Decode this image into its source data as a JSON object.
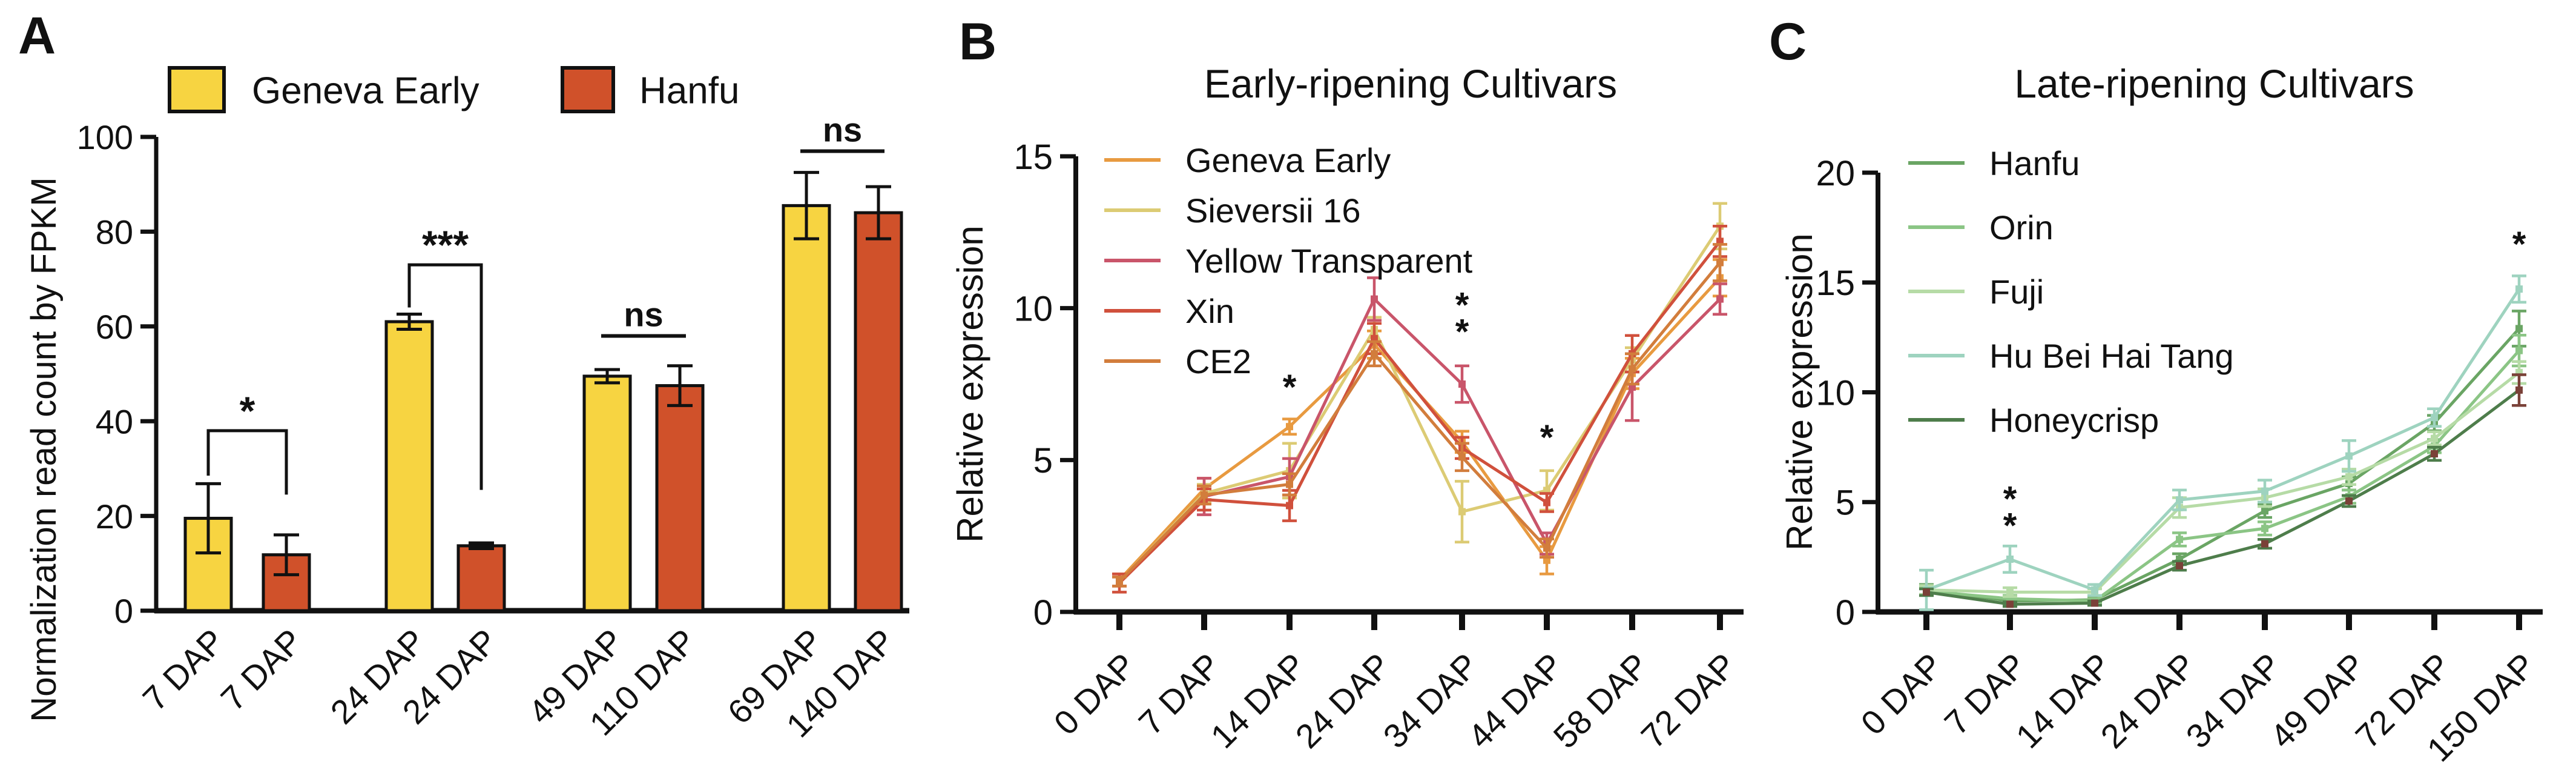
{
  "figure": {
    "background": "#ffffff"
  },
  "chart_data": [
    {
      "panel_label": "A",
      "type": "bar",
      "title": "",
      "ylabel": "Normalization read count by FPKM",
      "xlabel": "",
      "ylim": [
        0,
        100
      ],
      "yticks": [
        0,
        20,
        40,
        60,
        80,
        100
      ],
      "grid": false,
      "legend_position": "top",
      "legend": [
        {
          "label": "Geneva Early",
          "color": "#F7D441"
        },
        {
          "label": "Hanfu",
          "color": "#D0512A"
        }
      ],
      "categories": [
        "7 DAP",
        "7 DAP",
        "24 DAP",
        "24 DAP",
        "49 DAP",
        "110 DAP",
        "69 DAP",
        "140 DAP"
      ],
      "bars": [
        {
          "series": "Geneva Early",
          "category": "7 DAP",
          "value": 19.5,
          "error": 7.3
        },
        {
          "series": "Hanfu",
          "category": "7 DAP",
          "value": 11.8,
          "error": 4.2
        },
        {
          "series": "Geneva Early",
          "category": "24 DAP",
          "value": 61.0,
          "error": 1.6
        },
        {
          "series": "Hanfu",
          "category": "24 DAP",
          "value": 13.7,
          "error": 0.6
        },
        {
          "series": "Geneva Early",
          "category": "49 DAP",
          "value": 49.5,
          "error": 1.4
        },
        {
          "series": "Hanfu",
          "category": "110 DAP",
          "value": 47.5,
          "error": 4.2
        },
        {
          "series": "Geneva Early",
          "category": "69 DAP",
          "value": 85.5,
          "error": 7.0
        },
        {
          "series": "Hanfu",
          "category": "140 DAP",
          "value": 84.0,
          "error": 5.5
        }
      ],
      "significance": [
        {
          "style": "bracket",
          "from_bar": 0,
          "to_bar": 1,
          "y": 38,
          "drop_left": 9.5,
          "drop_right": 13.5,
          "label": "*"
        },
        {
          "style": "bracket",
          "from_bar": 2,
          "to_bar": 3,
          "y": 73,
          "drop_left": 9.0,
          "drop_right": 47.5,
          "label": "***"
        },
        {
          "style": "line",
          "from_bar": 4,
          "to_bar": 5,
          "y": 58,
          "label": "ns"
        },
        {
          "style": "line",
          "from_bar": 6,
          "to_bar": 7,
          "y": 97,
          "label": "ns"
        }
      ]
    },
    {
      "panel_label": "B",
      "type": "line",
      "title": "Early-ripening Cultivars",
      "ylabel": "Relative expression",
      "xlabel": "",
      "ylim": [
        0,
        15
      ],
      "yticks": [
        0,
        5,
        10,
        15
      ],
      "grid": false,
      "legend_position": "upper-left",
      "categories": [
        "0 DAP",
        "7 DAP",
        "14 DAP",
        "24 DAP",
        "34 DAP",
        "44 DAP",
        "58 DAP",
        "72 DAP"
      ],
      "series": [
        {
          "name": "Geneva Early",
          "color": "#E89A40",
          "values": [
            1.05,
            4.05,
            6.1,
            8.8,
            5.6,
            1.7,
            7.85,
            11.0
          ],
          "errors": [
            0.2,
            0.35,
            0.25,
            0.45,
            0.35,
            0.45,
            0.5,
            0.6
          ]
        },
        {
          "name": "Sieversii 16",
          "color": "#DCCB74",
          "values": [
            1.0,
            3.9,
            4.65,
            9.3,
            3.3,
            4.0,
            8.3,
            12.7
          ],
          "errors": [
            0.15,
            0.3,
            0.9,
            0.4,
            1.0,
            0.65,
            0.4,
            0.75
          ]
        },
        {
          "name": "Yellow Transparent",
          "color": "#C9556A",
          "values": [
            1.0,
            3.8,
            4.45,
            10.3,
            7.5,
            2.25,
            7.4,
            10.3
          ],
          "errors": [
            0.15,
            0.6,
            0.6,
            0.7,
            0.6,
            0.35,
            1.1,
            0.5
          ]
        },
        {
          "name": "Xin",
          "color": "#D0503C",
          "values": [
            0.95,
            3.7,
            3.5,
            9.0,
            5.4,
            3.6,
            8.5,
            12.2
          ],
          "errors": [
            0.3,
            0.35,
            0.5,
            0.5,
            0.35,
            0.3,
            0.6,
            0.5
          ]
        },
        {
          "name": "CE2",
          "color": "#D27D3C",
          "values": [
            1.0,
            3.85,
            4.2,
            8.5,
            5.1,
            2.1,
            8.0,
            11.5
          ],
          "errors": [
            0.15,
            0.3,
            0.35,
            0.4,
            0.45,
            0.3,
            0.5,
            0.6
          ]
        }
      ],
      "annotations": [
        {
          "x_index": 2,
          "y": 7.0,
          "label": "*",
          "stacked": false
        },
        {
          "x_index": 4,
          "y": 9.7,
          "label": "**",
          "stacked": true
        },
        {
          "x_index": 5,
          "y": 5.35,
          "label": "*",
          "stacked": false
        }
      ]
    },
    {
      "panel_label": "C",
      "type": "line",
      "title": "Late-ripening Cultivars",
      "ylabel": "Relative expression",
      "xlabel": "",
      "ylim": [
        0,
        20
      ],
      "yticks": [
        0,
        5,
        10,
        15,
        20
      ],
      "grid": false,
      "legend_position": "upper-left",
      "categories": [
        "0 DAP",
        "7 DAP",
        "14 DAP",
        "24 DAP",
        "34 DAP",
        "49 DAP",
        "72 DAP",
        "150 DAP"
      ],
      "series": [
        {
          "name": "Hanfu",
          "color": "#6AA564",
          "values": [
            1.0,
            0.5,
            0.55,
            2.4,
            4.6,
            5.85,
            8.6,
            12.9
          ],
          "errors": [
            0.25,
            0.15,
            0.1,
            0.25,
            0.3,
            0.3,
            0.35,
            0.8
          ]
        },
        {
          "name": "Orin",
          "color": "#8BC585",
          "values": [
            0.95,
            0.6,
            0.5,
            3.3,
            3.8,
            5.25,
            7.55,
            11.9
          ],
          "errors": [
            0.2,
            0.15,
            0.1,
            0.3,
            0.3,
            0.3,
            0.3,
            0.7
          ]
        },
        {
          "name": "Fuji",
          "color": "#B6DBA6",
          "values": [
            1.0,
            0.9,
            0.9,
            4.75,
            5.2,
            6.15,
            7.9,
            10.9
          ],
          "errors": [
            0.2,
            0.2,
            0.15,
            0.45,
            0.4,
            0.35,
            0.3,
            0.5
          ]
        },
        {
          "name": "Hu Bei Hai Tang",
          "color": "#9ED3BF",
          "values": [
            1.0,
            2.4,
            1.0,
            5.1,
            5.5,
            7.1,
            8.85,
            14.7
          ],
          "errors": [
            0.9,
            0.6,
            0.25,
            0.45,
            0.5,
            0.7,
            0.4,
            0.6
          ]
        },
        {
          "name": "Honeycrisp",
          "color": "#4E7D4B",
          "marker_color": "#7A4138",
          "values": [
            0.9,
            0.35,
            0.4,
            2.1,
            3.1,
            5.05,
            7.2,
            10.1
          ],
          "errors": [
            0.15,
            0.1,
            0.1,
            0.2,
            0.2,
            0.25,
            0.3,
            0.7
          ]
        }
      ],
      "annotations": [
        {
          "x_index": 1,
          "y": 4.6,
          "label": "**",
          "stacked": true
        },
        {
          "x_index": 7,
          "y": 16.2,
          "label": "*",
          "stacked": false
        }
      ]
    }
  ]
}
